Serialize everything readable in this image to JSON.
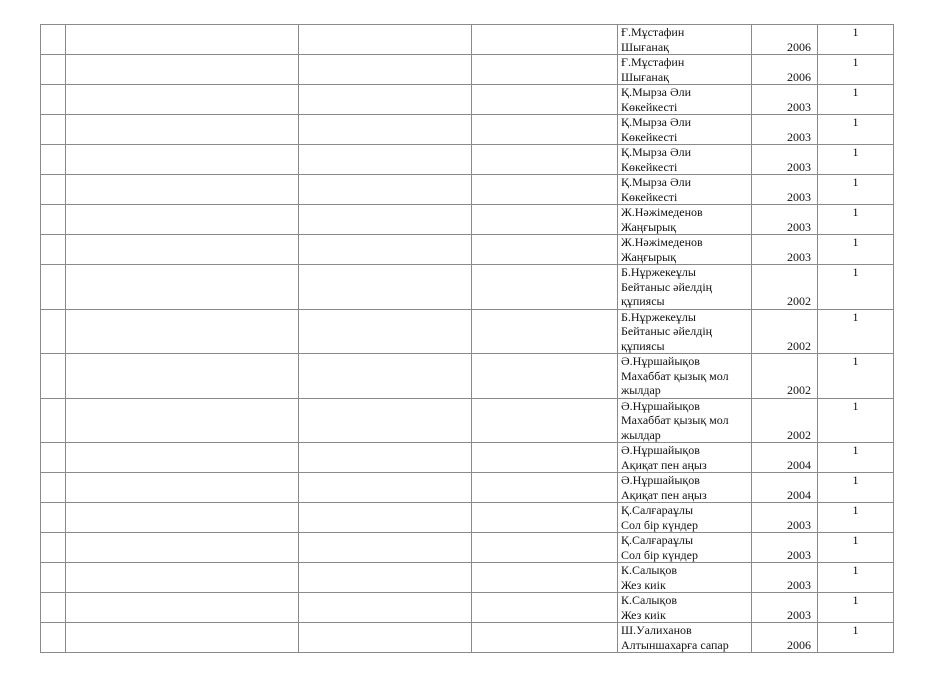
{
  "table": {
    "rows": [
      {
        "title_lines": [
          "Ғ.Мұстафин",
          "Шығанақ"
        ],
        "year": "2006",
        "count": "1"
      },
      {
        "title_lines": [
          "Ғ.Мұстафин",
          "Шығанақ"
        ],
        "year": "2006",
        "count": "1"
      },
      {
        "title_lines": [
          "Қ.Мырза Әли",
          "Көкейкесті"
        ],
        "year": "2003",
        "count": "1"
      },
      {
        "title_lines": [
          "Қ.Мырза Әли",
          "Көкейкесті"
        ],
        "year": "2003",
        "count": "1"
      },
      {
        "title_lines": [
          "Қ.Мырза Әли",
          "Көкейкесті"
        ],
        "year": "2003",
        "count": "1"
      },
      {
        "title_lines": [
          "Қ.Мырза Әли",
          "Көкейкесті"
        ],
        "year": "2003",
        "count": "1"
      },
      {
        "title_lines": [
          "Ж.Нәжімеденов",
          "Жаңғырық"
        ],
        "year": "2003",
        "count": "1"
      },
      {
        "title_lines": [
          "Ж.Нәжімеденов",
          "Жаңғырық"
        ],
        "year": "2003",
        "count": "1"
      },
      {
        "title_lines": [
          "Б.Нұржекеұлы",
          "Бейтаныс әйелдің",
          "құпиясы"
        ],
        "year": "2002",
        "count": "1"
      },
      {
        "title_lines": [
          "Б.Нұржекеұлы",
          "Бейтаныс әйелдің",
          "құпиясы"
        ],
        "year": "2002",
        "count": "1"
      },
      {
        "title_lines": [
          "Ә.Нұршайықов",
          "Махаббат қызық мол",
          "жылдар"
        ],
        "year": "2002",
        "count": "1"
      },
      {
        "title_lines": [
          "Ә.Нұршайықов",
          "Махаббат қызық мол",
          "жылдар"
        ],
        "year": "2002",
        "count": "1"
      },
      {
        "title_lines": [
          "Ә.Нұршайықов",
          "Ақиқат пен аңыз"
        ],
        "year": "2004",
        "count": "1"
      },
      {
        "title_lines": [
          "Ә.Нұршайықов",
          "Ақиқат пен аңыз"
        ],
        "year": "2004",
        "count": "1"
      },
      {
        "title_lines": [
          "Қ.Салғараұлы",
          "Сол бір күндер"
        ],
        "year": "2003",
        "count": "1"
      },
      {
        "title_lines": [
          "Қ.Салғараұлы",
          "Сол бір күндер"
        ],
        "year": "2003",
        "count": "1"
      },
      {
        "title_lines": [
          "К.Салықов",
          "Жез киік"
        ],
        "year": "2003",
        "count": "1"
      },
      {
        "title_lines": [
          "К.Салықов",
          "Жез киік"
        ],
        "year": "2003",
        "count": "1"
      },
      {
        "title_lines": [
          "Ш.Уалиханов",
          "Алтыншахарға сапар"
        ],
        "year": "2006",
        "count": "1"
      }
    ]
  }
}
